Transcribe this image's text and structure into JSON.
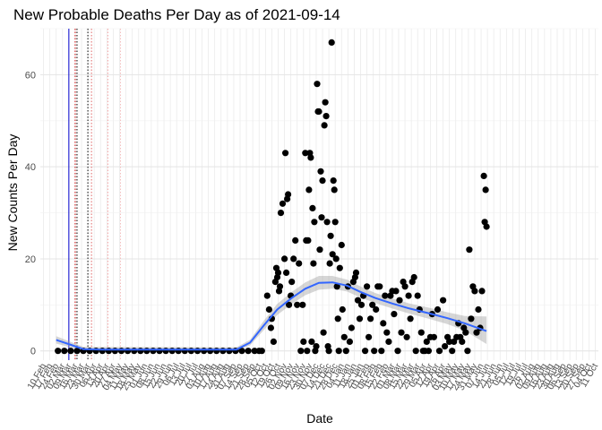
{
  "chart_data": {
    "type": "scatter",
    "title": "New Probable Deaths Per Day as of 2021-09-14",
    "xlabel": "Date",
    "ylabel": "New Counts Per Day",
    "x_range": [
      "2020-02-10",
      "2021-10-11"
    ],
    "ylim": [
      -2,
      70
    ],
    "y_ticks": [
      0,
      20,
      40,
      60
    ],
    "grid": true,
    "x_tick_labels": [
      "10 Feb",
      "17 Feb",
      "24 Feb",
      "02 Mar",
      "09 Mar",
      "16 Mar",
      "23 Mar",
      "30 Mar",
      "06 Apr",
      "13 Apr",
      "20 Apr",
      "27 Apr",
      "04 May",
      "11 May",
      "18 May",
      "25 May",
      "01 Jun",
      "08 Jun",
      "15 Jun",
      "22 Jun",
      "29 Jun",
      "06 Jul",
      "13 Jul",
      "20 Jul",
      "27 Jul",
      "03 Aug",
      "10 Aug",
      "17 Aug",
      "24 Aug",
      "31 Aug",
      "07 Sep",
      "14 Sep",
      "21 Sep",
      "28 Sep",
      "05 Oct",
      "12 Oct",
      "19 Oct",
      "26 Oct",
      "02 Nov",
      "09 Nov",
      "16 Nov",
      "23 Nov",
      "30 Nov",
      "07 Dec",
      "14 Dec",
      "21 Dec",
      "28 Dec",
      "04 Jan",
      "11 Jan",
      "18 Jan",
      "25 Jan",
      "01 Feb",
      "08 Feb",
      "15 Feb",
      "22 Feb",
      "01 Mar",
      "08 Mar",
      "15 Mar",
      "22 Mar",
      "29 Mar",
      "05 Apr",
      "12 Apr",
      "19 Apr",
      "26 Apr",
      "03 May",
      "10 May",
      "17 May",
      "24 May",
      "31 May",
      "07 Jun",
      "14 Jun",
      "21 Jun",
      "28 Jun",
      "05 Jul",
      "12 Jul",
      "19 Jul",
      "26 Jul",
      "02 Aug",
      "09 Aug",
      "16 Aug",
      "23 Aug",
      "30 Aug",
      "06 Sep",
      "13 Sep",
      "20 Sep",
      "27 Sep",
      "04 Oct",
      "11 Oct"
    ],
    "reference_lines": [
      {
        "date": "2020-03-09",
        "color": "#0000cc",
        "style": "solid"
      },
      {
        "date": "2020-03-16",
        "color": "#cc0000",
        "style": "dotted"
      },
      {
        "date": "2020-03-18",
        "color": "#000000",
        "style": "dotted"
      },
      {
        "date": "2020-03-30",
        "color": "#000000",
        "style": "dotted"
      },
      {
        "date": "2020-04-03",
        "color": "#e06666",
        "style": "dotted"
      },
      {
        "date": "2020-04-21",
        "color": "#f4a0a0",
        "style": "dotted"
      },
      {
        "date": "2020-05-05",
        "color": "#f4c0c0",
        "style": "dotted"
      }
    ],
    "series": [
      {
        "points": [
          [
            "2020-02-26",
            0
          ],
          [
            "2020-03-04",
            0
          ],
          [
            "2020-03-11",
            0
          ],
          [
            "2020-03-18",
            0
          ],
          [
            "2020-03-25",
            0
          ],
          [
            "2020-04-01",
            0
          ],
          [
            "2020-04-08",
            0
          ],
          [
            "2020-04-15",
            0
          ],
          [
            "2020-04-22",
            0
          ],
          [
            "2020-04-29",
            0
          ],
          [
            "2020-05-06",
            0
          ],
          [
            "2020-05-13",
            0
          ],
          [
            "2020-05-20",
            0
          ],
          [
            "2020-05-27",
            0
          ],
          [
            "2020-06-03",
            0
          ],
          [
            "2020-06-10",
            0
          ],
          [
            "2020-06-17",
            0
          ],
          [
            "2020-06-24",
            0
          ],
          [
            "2020-07-01",
            0
          ],
          [
            "2020-07-08",
            0
          ],
          [
            "2020-07-15",
            0
          ],
          [
            "2020-07-22",
            0
          ],
          [
            "2020-07-29",
            0
          ],
          [
            "2020-08-05",
            0
          ],
          [
            "2020-08-12",
            0
          ],
          [
            "2020-08-19",
            0
          ],
          [
            "2020-08-26",
            0
          ],
          [
            "2020-09-02",
            0
          ],
          [
            "2020-09-09",
            0
          ],
          [
            "2020-09-16",
            0
          ],
          [
            "2020-09-23",
            0
          ],
          [
            "2020-09-30",
            0
          ],
          [
            "2020-10-05",
            0
          ],
          [
            "2020-10-08",
            0
          ],
          [
            "2020-10-14",
            12
          ],
          [
            "2020-10-16",
            9
          ],
          [
            "2020-10-18",
            5
          ],
          [
            "2020-10-19",
            7
          ],
          [
            "2020-10-21",
            2
          ],
          [
            "2020-10-23",
            15
          ],
          [
            "2020-10-24",
            18
          ],
          [
            "2020-10-25",
            16
          ],
          [
            "2020-10-26",
            17
          ],
          [
            "2020-10-27",
            13
          ],
          [
            "2020-10-28",
            14
          ],
          [
            "2020-10-29",
            30
          ],
          [
            "2020-10-31",
            32
          ],
          [
            "2020-11-02",
            20
          ],
          [
            "2020-11-03",
            43
          ],
          [
            "2020-11-04",
            17
          ],
          [
            "2020-11-05",
            33
          ],
          [
            "2020-11-06",
            34
          ],
          [
            "2020-11-07",
            10
          ],
          [
            "2020-11-09",
            12
          ],
          [
            "2020-11-10",
            15
          ],
          [
            "2020-11-12",
            20
          ],
          [
            "2020-11-14",
            24
          ],
          [
            "2020-11-16",
            10
          ],
          [
            "2020-11-18",
            19
          ],
          [
            "2020-11-20",
            0
          ],
          [
            "2020-11-22",
            10
          ],
          [
            "2020-11-23",
            2
          ],
          [
            "2020-11-25",
            43
          ],
          [
            "2020-11-26",
            24
          ],
          [
            "2020-11-27",
            0
          ],
          [
            "2020-11-28",
            24
          ],
          [
            "2020-11-29",
            35
          ],
          [
            "2020-11-30",
            43
          ],
          [
            "2020-12-01",
            42
          ],
          [
            "2020-12-02",
            2
          ],
          [
            "2020-12-03",
            31
          ],
          [
            "2020-12-04",
            19
          ],
          [
            "2020-12-05",
            28
          ],
          [
            "2020-12-06",
            0
          ],
          [
            "2020-12-07",
            1
          ],
          [
            "2020-12-08",
            58
          ],
          [
            "2020-12-09",
            52
          ],
          [
            "2020-12-10",
            52
          ],
          [
            "2020-12-11",
            22
          ],
          [
            "2020-12-12",
            39
          ],
          [
            "2020-12-13",
            29
          ],
          [
            "2020-12-14",
            37
          ],
          [
            "2020-12-15",
            4
          ],
          [
            "2020-12-16",
            49
          ],
          [
            "2020-12-17",
            54
          ],
          [
            "2020-12-18",
            51
          ],
          [
            "2020-12-19",
            28
          ],
          [
            "2020-12-20",
            1
          ],
          [
            "2020-12-21",
            0
          ],
          [
            "2020-12-22",
            19
          ],
          [
            "2020-12-23",
            25
          ],
          [
            "2020-12-24",
            67
          ],
          [
            "2020-12-25",
            21
          ],
          [
            "2020-12-26",
            37
          ],
          [
            "2020-12-27",
            35
          ],
          [
            "2020-12-28",
            28
          ],
          [
            "2020-12-29",
            20
          ],
          [
            "2020-12-30",
            14
          ],
          [
            "2020-12-31",
            7
          ],
          [
            "2021-01-01",
            0
          ],
          [
            "2021-01-02",
            18
          ],
          [
            "2021-01-04",
            23
          ],
          [
            "2021-01-05",
            9
          ],
          [
            "2021-01-07",
            3
          ],
          [
            "2021-01-09",
            0
          ],
          [
            "2021-01-11",
            14
          ],
          [
            "2021-01-13",
            2
          ],
          [
            "2021-01-15",
            5
          ],
          [
            "2021-01-17",
            15
          ],
          [
            "2021-01-19",
            16
          ],
          [
            "2021-01-20",
            17
          ],
          [
            "2021-01-22",
            11
          ],
          [
            "2021-01-24",
            7
          ],
          [
            "2021-01-26",
            10
          ],
          [
            "2021-01-28",
            12
          ],
          [
            "2021-01-30",
            0
          ],
          [
            "2021-02-01",
            14
          ],
          [
            "2021-02-03",
            3
          ],
          [
            "2021-02-05",
            7
          ],
          [
            "2021-02-07",
            10
          ],
          [
            "2021-02-09",
            0
          ],
          [
            "2021-02-11",
            9
          ],
          [
            "2021-02-13",
            14
          ],
          [
            "2021-02-15",
            14
          ],
          [
            "2021-02-17",
            0
          ],
          [
            "2021-02-19",
            6
          ],
          [
            "2021-02-21",
            12
          ],
          [
            "2021-02-23",
            4
          ],
          [
            "2021-02-25",
            2
          ],
          [
            "2021-02-27",
            12
          ],
          [
            "2021-03-01",
            13
          ],
          [
            "2021-03-03",
            8
          ],
          [
            "2021-03-05",
            13
          ],
          [
            "2021-03-07",
            0
          ],
          [
            "2021-03-09",
            11
          ],
          [
            "2021-03-11",
            4
          ],
          [
            "2021-03-13",
            15
          ],
          [
            "2021-03-15",
            14
          ],
          [
            "2021-03-17",
            3
          ],
          [
            "2021-03-19",
            12
          ],
          [
            "2021-03-21",
            7
          ],
          [
            "2021-03-23",
            15
          ],
          [
            "2021-03-25",
            16
          ],
          [
            "2021-03-27",
            0
          ],
          [
            "2021-03-29",
            12
          ],
          [
            "2021-03-31",
            9
          ],
          [
            "2021-04-02",
            4
          ],
          [
            "2021-04-04",
            0
          ],
          [
            "2021-04-06",
            0
          ],
          [
            "2021-04-08",
            2
          ],
          [
            "2021-04-10",
            0
          ],
          [
            "2021-04-12",
            3
          ],
          [
            "2021-04-14",
            8
          ],
          [
            "2021-04-16",
            3
          ],
          [
            "2021-04-20",
            9
          ],
          [
            "2021-04-22",
            0
          ],
          [
            "2021-04-26",
            11
          ],
          [
            "2021-04-28",
            1
          ],
          [
            "2021-05-01",
            3
          ],
          [
            "2021-05-03",
            2
          ],
          [
            "2021-05-06",
            0
          ],
          [
            "2021-05-08",
            2
          ],
          [
            "2021-05-11",
            3
          ],
          [
            "2021-05-13",
            6
          ],
          [
            "2021-05-15",
            3
          ],
          [
            "2021-05-17",
            2
          ],
          [
            "2021-05-19",
            5
          ],
          [
            "2021-05-21",
            4
          ],
          [
            "2021-05-23",
            0
          ],
          [
            "2021-05-25",
            22
          ],
          [
            "2021-05-27",
            7
          ],
          [
            "2021-05-29",
            14
          ],
          [
            "2021-05-31",
            13
          ],
          [
            "2021-06-02",
            4
          ],
          [
            "2021-06-04",
            9
          ],
          [
            "2021-06-06",
            5
          ],
          [
            "2021-06-08",
            13
          ],
          [
            "2021-06-10",
            38
          ],
          [
            "2021-06-11",
            28
          ],
          [
            "2021-06-12",
            35
          ],
          [
            "2021-06-13",
            27
          ]
        ]
      }
    ],
    "trend_line": {
      "name": "loess smoother",
      "color": "#3366ff",
      "points": [
        [
          "2020-02-24",
          2.4
        ],
        [
          "2020-03-10",
          1.4
        ],
        [
          "2020-03-25",
          0.4
        ],
        [
          "2020-04-15",
          0.3
        ],
        [
          "2020-06-01",
          0.3
        ],
        [
          "2020-08-01",
          0.3
        ],
        [
          "2020-09-10",
          0.3
        ],
        [
          "2020-09-25",
          1.8
        ],
        [
          "2020-10-10",
          5.5
        ],
        [
          "2020-10-25",
          9
        ],
        [
          "2020-11-10",
          11.5
        ],
        [
          "2020-11-25",
          13.5
        ],
        [
          "2020-12-10",
          14.8
        ],
        [
          "2020-12-25",
          14.9
        ],
        [
          "2021-01-10",
          14.2
        ],
        [
          "2021-01-25",
          12.8
        ],
        [
          "2021-02-10",
          11.5
        ],
        [
          "2021-03-01",
          10.3
        ],
        [
          "2021-03-20",
          9.2
        ],
        [
          "2021-04-10",
          8.2
        ],
        [
          "2021-05-01",
          7.1
        ],
        [
          "2021-05-20",
          6
        ],
        [
          "2021-06-13",
          4.3
        ]
      ],
      "band": [
        [
          "2020-02-24",
          1.6,
          3.2
        ],
        [
          "2020-03-25",
          0,
          0.9
        ],
        [
          "2020-09-10",
          0,
          0.8
        ],
        [
          "2020-09-25",
          1.2,
          2.4
        ],
        [
          "2020-10-10",
          4.5,
          6.5
        ],
        [
          "2020-10-25",
          7.8,
          10.2
        ],
        [
          "2020-11-10",
          10.2,
          12.8
        ],
        [
          "2020-11-25",
          12.1,
          14.9
        ],
        [
          "2020-12-10",
          13.3,
          16.3
        ],
        [
          "2020-12-25",
          13.5,
          16.3
        ],
        [
          "2021-01-10",
          12.9,
          15.5
        ],
        [
          "2021-01-25",
          11.6,
          14
        ],
        [
          "2021-02-10",
          10.4,
          12.6
        ],
        [
          "2021-03-01",
          9.2,
          11.4
        ],
        [
          "2021-03-20",
          8.1,
          10.3
        ],
        [
          "2021-04-10",
          7,
          9.4
        ],
        [
          "2021-05-01",
          5.8,
          8.4
        ],
        [
          "2021-05-20",
          4.4,
          7.6
        ],
        [
          "2021-06-13",
          1.5,
          7.5
        ]
      ]
    }
  }
}
